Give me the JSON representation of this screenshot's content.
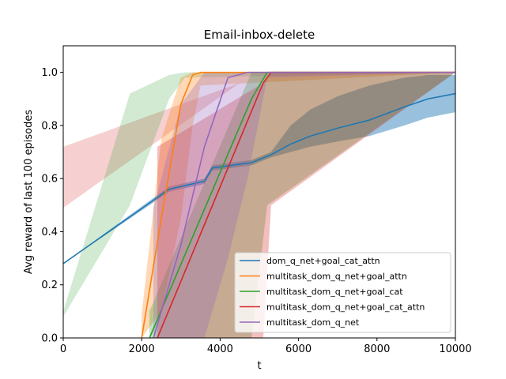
{
  "chart_data": {
    "type": "line",
    "title": "Email-inbox-delete",
    "xlabel": "t",
    "ylabel": "Avg reward of last 100 episodes",
    "xlim": [
      0,
      10000
    ],
    "ylim": [
      0,
      1.1
    ],
    "xticks": [
      0,
      2000,
      4000,
      6000,
      8000,
      10000
    ],
    "yticks": [
      0.0,
      0.2,
      0.4,
      0.6,
      0.8,
      1.0
    ],
    "xtick_labels": [
      "0",
      "2000",
      "4000",
      "6000",
      "8000",
      "10000"
    ],
    "ytick_labels": [
      "0.0",
      "0.2",
      "0.4",
      "0.6",
      "0.8",
      "1.0"
    ],
    "grid": false,
    "legend_position": "lower-right",
    "series": [
      {
        "name": "dom_q_net+goal_cat_attn",
        "color": "#1f77b4",
        "x": [
          0,
          2700,
          3600,
          3800,
          4800,
          5300,
          5800,
          6300,
          7000,
          7800,
          8700,
          9300,
          10000
        ],
        "y": [
          0.28,
          0.56,
          0.59,
          0.64,
          0.66,
          0.69,
          0.73,
          0.76,
          0.79,
          0.82,
          0.87,
          0.9,
          0.92
        ],
        "upper": [
          0.28,
          0.57,
          0.6,
          0.65,
          0.67,
          0.7,
          0.8,
          0.86,
          0.91,
          0.95,
          0.98,
          0.99,
          0.99
        ],
        "lower": [
          0.28,
          0.55,
          0.58,
          0.63,
          0.65,
          0.68,
          0.7,
          0.72,
          0.74,
          0.76,
          0.8,
          0.83,
          0.85
        ]
      },
      {
        "name": "multitask_dom_q_net+goal_attn",
        "color": "#ff7f0e",
        "x": [
          2000,
          2500,
          3000,
          3300,
          3500,
          10000
        ],
        "y": [
          0.0,
          0.45,
          0.88,
          0.99,
          1.0,
          1.0
        ],
        "upper": [
          0.09,
          0.75,
          0.98,
          1.0,
          1.0,
          1.0
        ],
        "lower": [
          0.0,
          0.1,
          0.45,
          0.8,
          0.95,
          1.0
        ]
      },
      {
        "name": "multitask_dom_q_net+goal_cat",
        "color": "#2ca02c",
        "x": [
          2200,
          4800,
          5200,
          10000
        ],
        "y": [
          0.0,
          0.9,
          1.0,
          1.0
        ],
        "upper": [
          0.1,
          1.0,
          1.0,
          1.0
        ],
        "lower": [
          0.0,
          0.0,
          0.5,
          1.0
        ]
      },
      {
        "name": "multitask_dom_q_net+goal_cat_attn",
        "color": "#d62728",
        "x": [
          2400,
          5100,
          5300,
          10000
        ],
        "y": [
          0.0,
          0.96,
          1.0,
          1.0
        ],
        "upper": [
          0.72,
          0.96,
          1.0,
          1.0
        ],
        "lower": [
          0.0,
          0.0,
          0.5,
          1.0
        ]
      },
      {
        "name": "multitask_dom_q_net",
        "color": "#9467bd",
        "x": [
          2300,
          3000,
          3600,
          4200,
          4700,
          5200,
          10000
        ],
        "y": [
          0.0,
          0.35,
          0.72,
          0.98,
          1.0,
          1.0,
          1.0
        ],
        "upper": [
          0.49,
          0.88,
          1.0,
          1.0,
          1.0,
          1.0,
          1.0
        ],
        "lower": [
          0.0,
          0.0,
          0.0,
          0.3,
          0.6,
          0.98,
          1.0
        ]
      }
    ],
    "bands": [
      {
        "color": "#1f77b4",
        "x": [
          0,
          2700,
          3600,
          3800,
          4800,
          5300,
          5800,
          6300,
          7000,
          7800,
          8700,
          9300,
          10000
        ],
        "upper": [
          0.28,
          0.57,
          0.6,
          0.65,
          0.67,
          0.7,
          0.8,
          0.86,
          0.91,
          0.95,
          0.98,
          0.99,
          0.99
        ],
        "lower": [
          0.28,
          0.55,
          0.58,
          0.63,
          0.65,
          0.68,
          0.7,
          0.72,
          0.74,
          0.76,
          0.8,
          0.83,
          0.85
        ]
      },
      {
        "color": "#d62728",
        "x": [
          0,
          4500,
          3700
        ],
        "upper": [
          0.72,
          0.96,
          0.0
        ],
        "lower": [
          0.49,
          0.96,
          0.0
        ]
      },
      {
        "color": "#2ca02c",
        "x": [
          0,
          1700,
          2700,
          3100,
          10000
        ],
        "upper": [
          0.1,
          0.92,
          0.99,
          1.0,
          1.0
        ],
        "lower": [
          0.08,
          0.5,
          0.9,
          0.98,
          1.0
        ]
      }
    ]
  }
}
